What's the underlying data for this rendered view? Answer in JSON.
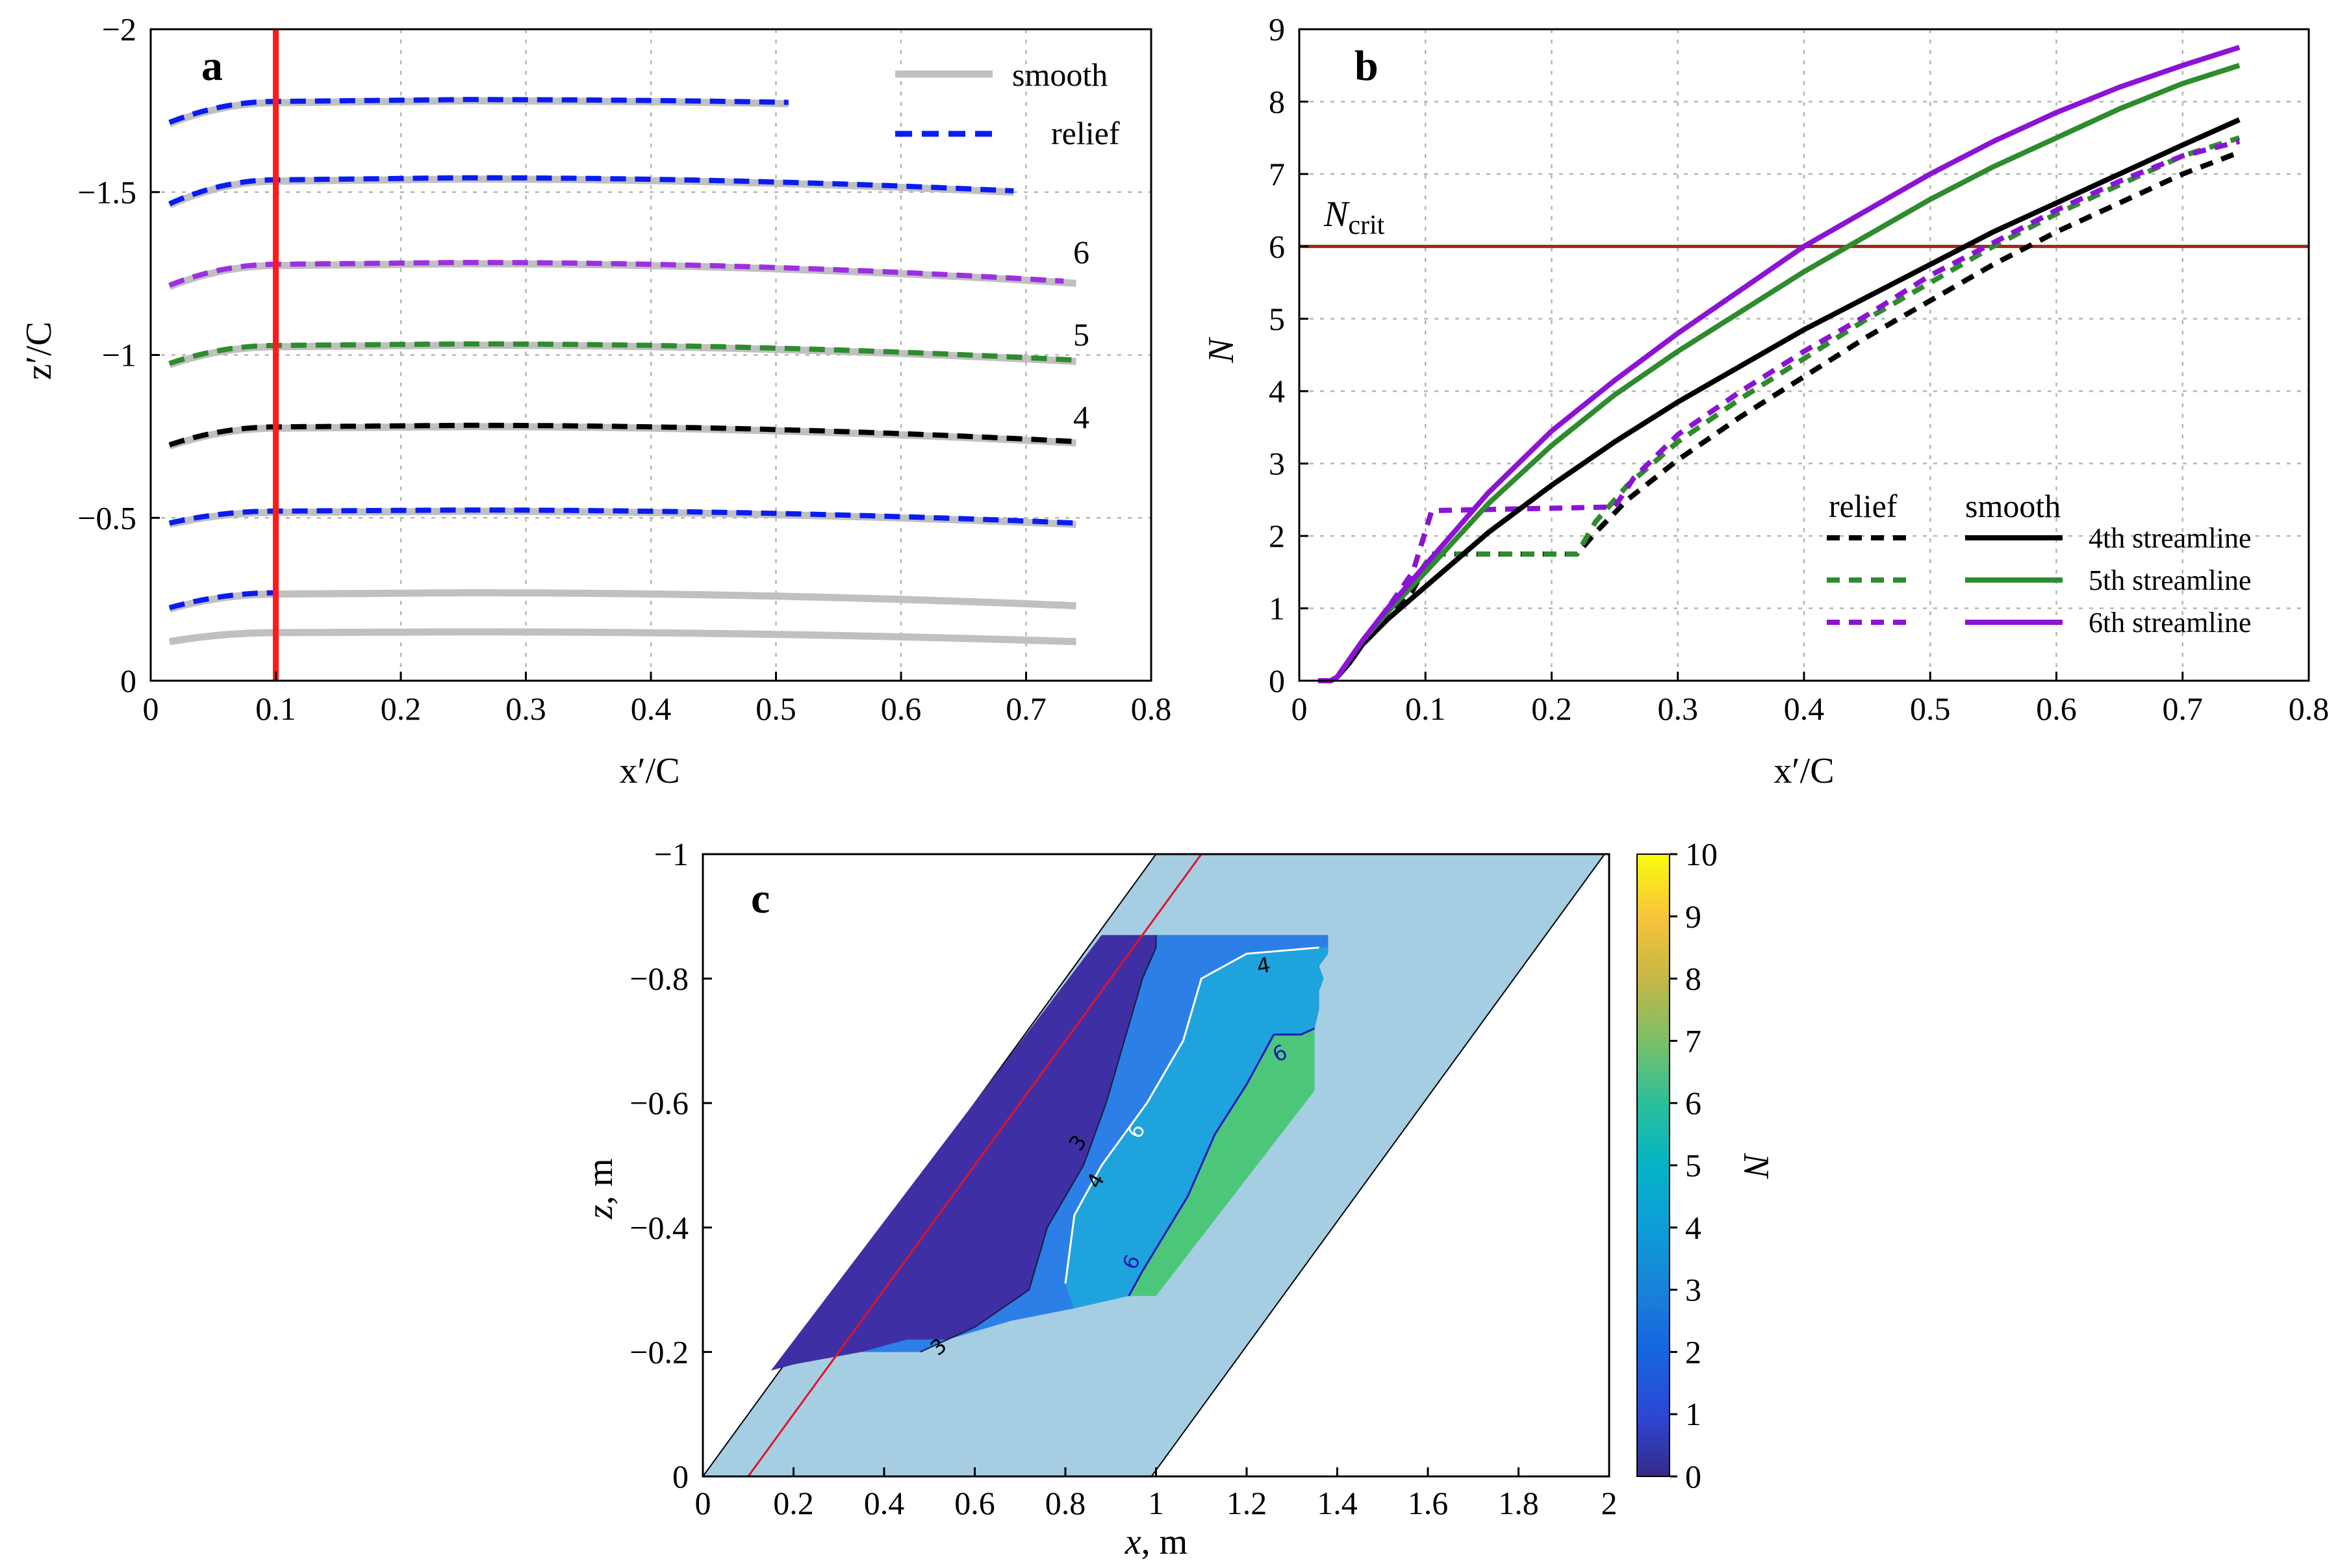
{
  "chart_data": [
    {
      "panel": "a",
      "type": "line",
      "xlabel": "x′/C",
      "ylabel": "z′/C",
      "xlim": [
        0,
        0.8
      ],
      "ylim": [
        0,
        -2
      ],
      "x_ticks": [
        "0",
        "0.1",
        "0.2",
        "0.3",
        "0.4",
        "0.5",
        "0.6",
        "0.7",
        "0.8"
      ],
      "y_ticks": [
        "0",
        "−0.5",
        "−1",
        "−1.5",
        "−2"
      ],
      "legend": [
        "smooth",
        "relief"
      ],
      "marker_line_x": 0.1,
      "streamline_labels": [
        "6",
        "5",
        "4"
      ],
      "series": [
        {
          "name": "streamline 1",
          "z0": -0.12,
          "zmax": -0.15,
          "zend": -0.12,
          "xend": 0.74,
          "relief_xend": null
        },
        {
          "name": "streamline 2",
          "z0": -0.22,
          "zmax": -0.27,
          "zend": -0.23,
          "xend": 0.74,
          "relief_xend": 0.1
        },
        {
          "name": "streamline 3",
          "z0": -0.48,
          "zmax": -0.52,
          "zend": -0.48,
          "xend": 0.74,
          "relief_xend": 0.74
        },
        {
          "name": "streamline 4",
          "z0": -0.72,
          "zmax": -0.78,
          "zend": -0.73,
          "xend": 0.74,
          "relief_xend": 0.74
        },
        {
          "name": "streamline 5",
          "z0": -0.97,
          "zmax": -1.03,
          "zend": -0.98,
          "xend": 0.74,
          "relief_xend": 0.74
        },
        {
          "name": "streamline 6",
          "z0": -1.21,
          "zmax": -1.28,
          "zend": -1.22,
          "xend": 0.74,
          "relief_xend": 0.73
        },
        {
          "name": "streamline 7",
          "z0": -1.46,
          "zmax": -1.54,
          "zend": -1.49,
          "xend": 0.69,
          "relief_xend": 0.69
        },
        {
          "name": "streamline 8",
          "z0": -1.71,
          "zmax": -1.78,
          "zend": -1.75,
          "xend": 0.51,
          "relief_xend": 0.51
        }
      ]
    },
    {
      "panel": "b",
      "type": "line",
      "xlabel": "x′/C",
      "ylabel": "N",
      "xlim": [
        0,
        0.8
      ],
      "ylim": [
        0,
        9
      ],
      "x_ticks": [
        "0",
        "0.1",
        "0.2",
        "0.3",
        "0.4",
        "0.5",
        "0.6",
        "0.7",
        "0.8"
      ],
      "y_ticks": [
        "0",
        "1",
        "2",
        "3",
        "4",
        "5",
        "6",
        "7",
        "8",
        "9"
      ],
      "ncrit": 6,
      "ncrit_label": "N",
      "ncrit_sub": "crit",
      "legend_header_relief": "relief",
      "legend_header_smooth": "smooth",
      "series": [
        {
          "name": "4th streamline",
          "color": "#000000",
          "smooth": [
            [
              0.015,
              0
            ],
            [
              0.025,
              0
            ],
            [
              0.03,
              0.05
            ],
            [
              0.04,
              0.25
            ],
            [
              0.05,
              0.5
            ],
            [
              0.07,
              0.85
            ],
            [
              0.1,
              1.3
            ],
            [
              0.15,
              2.05
            ],
            [
              0.2,
              2.7
            ],
            [
              0.25,
              3.3
            ],
            [
              0.3,
              3.85
            ],
            [
              0.35,
              4.35
            ],
            [
              0.4,
              4.85
            ],
            [
              0.45,
              5.3
            ],
            [
              0.5,
              5.75
            ],
            [
              0.55,
              6.2
            ],
            [
              0.6,
              6.6
            ],
            [
              0.65,
              7.0
            ],
            [
              0.7,
              7.4
            ],
            [
              0.745,
              7.75
            ]
          ],
          "relief": [
            [
              0.015,
              0
            ],
            [
              0.025,
              0
            ],
            [
              0.03,
              0.05
            ],
            [
              0.04,
              0.25
            ],
            [
              0.05,
              0.5
            ],
            [
              0.07,
              0.85
            ],
            [
              0.09,
              1.25
            ],
            [
              0.105,
              1.75
            ],
            [
              0.22,
              1.75
            ],
            [
              0.235,
              2.05
            ],
            [
              0.26,
              2.5
            ],
            [
              0.3,
              3.05
            ],
            [
              0.35,
              3.65
            ],
            [
              0.4,
              4.2
            ],
            [
              0.45,
              4.75
            ],
            [
              0.5,
              5.25
            ],
            [
              0.55,
              5.75
            ],
            [
              0.6,
              6.2
            ],
            [
              0.65,
              6.6
            ],
            [
              0.7,
              7.0
            ],
            [
              0.745,
              7.3
            ]
          ]
        },
        {
          "name": "5th streamline",
          "color": "#2e8b2e",
          "smooth": [
            [
              0.015,
              0
            ],
            [
              0.025,
              0
            ],
            [
              0.03,
              0.05
            ],
            [
              0.04,
              0.3
            ],
            [
              0.05,
              0.55
            ],
            [
              0.07,
              0.95
            ],
            [
              0.1,
              1.5
            ],
            [
              0.15,
              2.45
            ],
            [
              0.2,
              3.25
            ],
            [
              0.25,
              3.95
            ],
            [
              0.3,
              4.55
            ],
            [
              0.35,
              5.1
            ],
            [
              0.4,
              5.65
            ],
            [
              0.45,
              6.15
            ],
            [
              0.5,
              6.65
            ],
            [
              0.55,
              7.1
            ],
            [
              0.6,
              7.5
            ],
            [
              0.65,
              7.9
            ],
            [
              0.7,
              8.25
            ],
            [
              0.745,
              8.5
            ]
          ],
          "relief": [
            [
              0.015,
              0
            ],
            [
              0.025,
              0
            ],
            [
              0.03,
              0.05
            ],
            [
              0.04,
              0.3
            ],
            [
              0.05,
              0.55
            ],
            [
              0.07,
              0.95
            ],
            [
              0.09,
              1.35
            ],
            [
              0.105,
              1.75
            ],
            [
              0.22,
              1.75
            ],
            [
              0.235,
              2.2
            ],
            [
              0.26,
              2.7
            ],
            [
              0.3,
              3.3
            ],
            [
              0.35,
              3.9
            ],
            [
              0.4,
              4.45
            ],
            [
              0.45,
              5.0
            ],
            [
              0.5,
              5.5
            ],
            [
              0.55,
              6.0
            ],
            [
              0.6,
              6.45
            ],
            [
              0.65,
              6.85
            ],
            [
              0.7,
              7.25
            ],
            [
              0.745,
              7.5
            ]
          ]
        },
        {
          "name": "6th streamline",
          "color": "#8b14d4",
          "smooth": [
            [
              0.015,
              0
            ],
            [
              0.025,
              0
            ],
            [
              0.03,
              0.05
            ],
            [
              0.04,
              0.3
            ],
            [
              0.05,
              0.55
            ],
            [
              0.07,
              1.0
            ],
            [
              0.1,
              1.6
            ],
            [
              0.15,
              2.6
            ],
            [
              0.2,
              3.45
            ],
            [
              0.25,
              4.15
            ],
            [
              0.3,
              4.8
            ],
            [
              0.35,
              5.4
            ],
            [
              0.4,
              6.0
            ],
            [
              0.45,
              6.5
            ],
            [
              0.5,
              7.0
            ],
            [
              0.55,
              7.45
            ],
            [
              0.6,
              7.85
            ],
            [
              0.65,
              8.2
            ],
            [
              0.7,
              8.5
            ],
            [
              0.745,
              8.75
            ]
          ],
          "relief": [
            [
              0.015,
              0
            ],
            [
              0.025,
              0
            ],
            [
              0.03,
              0.05
            ],
            [
              0.04,
              0.3
            ],
            [
              0.05,
              0.55
            ],
            [
              0.07,
              1.0
            ],
            [
              0.09,
              1.5
            ],
            [
              0.105,
              2.35
            ],
            [
              0.25,
              2.4
            ],
            [
              0.265,
              2.8
            ],
            [
              0.3,
              3.4
            ],
            [
              0.35,
              4.0
            ],
            [
              0.4,
              4.55
            ],
            [
              0.45,
              5.05
            ],
            [
              0.5,
              5.6
            ],
            [
              0.55,
              6.05
            ],
            [
              0.6,
              6.5
            ],
            [
              0.65,
              6.9
            ],
            [
              0.7,
              7.25
            ],
            [
              0.745,
              7.45
            ]
          ]
        }
      ]
    },
    {
      "panel": "c",
      "type": "heatmap",
      "xlabel": "x, m",
      "ylabel": "z, m",
      "xlim": [
        0,
        2
      ],
      "ylim": [
        0,
        -1
      ],
      "x_ticks": [
        "0",
        "0.2",
        "0.4",
        "0.6",
        "0.8",
        "1",
        "1.2",
        "1.4",
        "1.6",
        "1.8",
        "2"
      ],
      "y_ticks": [
        "0",
        "−0.2",
        "−0.4",
        "−0.6",
        "−0.8",
        "−1"
      ],
      "colorbar_label": "N",
      "colorbar_range": [
        0,
        10
      ],
      "colorbar_ticks": [
        "0",
        "1",
        "2",
        "3",
        "4",
        "5",
        "6",
        "7",
        "8",
        "9",
        "10"
      ],
      "contour_labels": [
        "3",
        "3",
        "4",
        "4",
        "6",
        "6",
        "6"
      ],
      "domain_polygon": [
        [
          0,
          0
        ],
        [
          0.99,
          0
        ],
        [
          1.99,
          -1
        ],
        [
          1.0,
          -1
        ]
      ],
      "red_line": [
        [
          0.1,
          0
        ],
        [
          1.1,
          -1
        ]
      ],
      "regions": [
        {
          "level": "0-3",
          "color": "#3f2fa4",
          "points": [
            [
              0.15,
              -0.17
            ],
            [
              0.88,
              -0.87
            ],
            [
              1.0,
              -0.87
            ],
            [
              1.0,
              -0.85
            ],
            [
              0.97,
              -0.8
            ],
            [
              0.93,
              -0.7
            ],
            [
              0.89,
              -0.6
            ],
            [
              0.84,
              -0.5
            ],
            [
              0.76,
              -0.4
            ],
            [
              0.72,
              -0.3
            ],
            [
              0.6,
              -0.24
            ],
            [
              0.48,
              -0.2
            ],
            [
              0.35,
              -0.2
            ],
            [
              0.2,
              -0.18
            ]
          ]
        },
        {
          "level": "3-4",
          "color": "#2b7fe6",
          "points": [
            [
              0.35,
              -0.2
            ],
            [
              0.48,
              -0.2
            ],
            [
              0.6,
              -0.24
            ],
            [
              0.72,
              -0.3
            ],
            [
              0.76,
              -0.4
            ],
            [
              0.84,
              -0.5
            ],
            [
              0.89,
              -0.6
            ],
            [
              0.93,
              -0.7
            ],
            [
              0.97,
              -0.8
            ],
            [
              1.0,
              -0.85
            ],
            [
              1.0,
              -0.87
            ],
            [
              1.38,
              -0.87
            ],
            [
              1.38,
              -0.85
            ],
            [
              1.2,
              -0.84
            ],
            [
              1.1,
              -0.8
            ],
            [
              1.06,
              -0.7
            ],
            [
              0.98,
              -0.6
            ],
            [
              0.88,
              -0.5
            ],
            [
              0.82,
              -0.42
            ],
            [
              0.8,
              -0.31
            ],
            [
              0.82,
              -0.27
            ],
            [
              0.68,
              -0.25
            ],
            [
              0.54,
              -0.22
            ],
            [
              0.45,
              -0.22
            ]
          ]
        },
        {
          "level": "4-6",
          "color": "#1fa3dc",
          "points": [
            [
              0.8,
              -0.31
            ],
            [
              0.82,
              -0.42
            ],
            [
              0.88,
              -0.5
            ],
            [
              0.98,
              -0.6
            ],
            [
              1.06,
              -0.7
            ],
            [
              1.1,
              -0.8
            ],
            [
              1.2,
              -0.84
            ],
            [
              1.38,
              -0.85
            ],
            [
              1.38,
              -0.84
            ],
            [
              1.36,
              -0.82
            ],
            [
              1.37,
              -0.8
            ],
            [
              1.36,
              -0.78
            ],
            [
              1.36,
              -0.75
            ],
            [
              1.35,
              -0.72
            ],
            [
              1.32,
              -0.71
            ],
            [
              1.26,
              -0.71
            ],
            [
              1.2,
              -0.63
            ],
            [
              1.13,
              -0.55
            ],
            [
              1.07,
              -0.45
            ],
            [
              0.97,
              -0.33
            ],
            [
              0.94,
              -0.29
            ],
            [
              0.82,
              -0.27
            ]
          ]
        },
        {
          "level": "6-7",
          "color": "#4cc77a",
          "points": [
            [
              0.94,
              -0.29
            ],
            [
              0.97,
              -0.33
            ],
            [
              1.07,
              -0.45
            ],
            [
              1.13,
              -0.55
            ],
            [
              1.2,
              -0.63
            ],
            [
              1.26,
              -0.71
            ],
            [
              1.32,
              -0.71
            ],
            [
              1.35,
              -0.72
            ],
            [
              1.35,
              -0.62
            ],
            [
              1.0,
              -0.29
            ]
          ]
        }
      ]
    }
  ]
}
